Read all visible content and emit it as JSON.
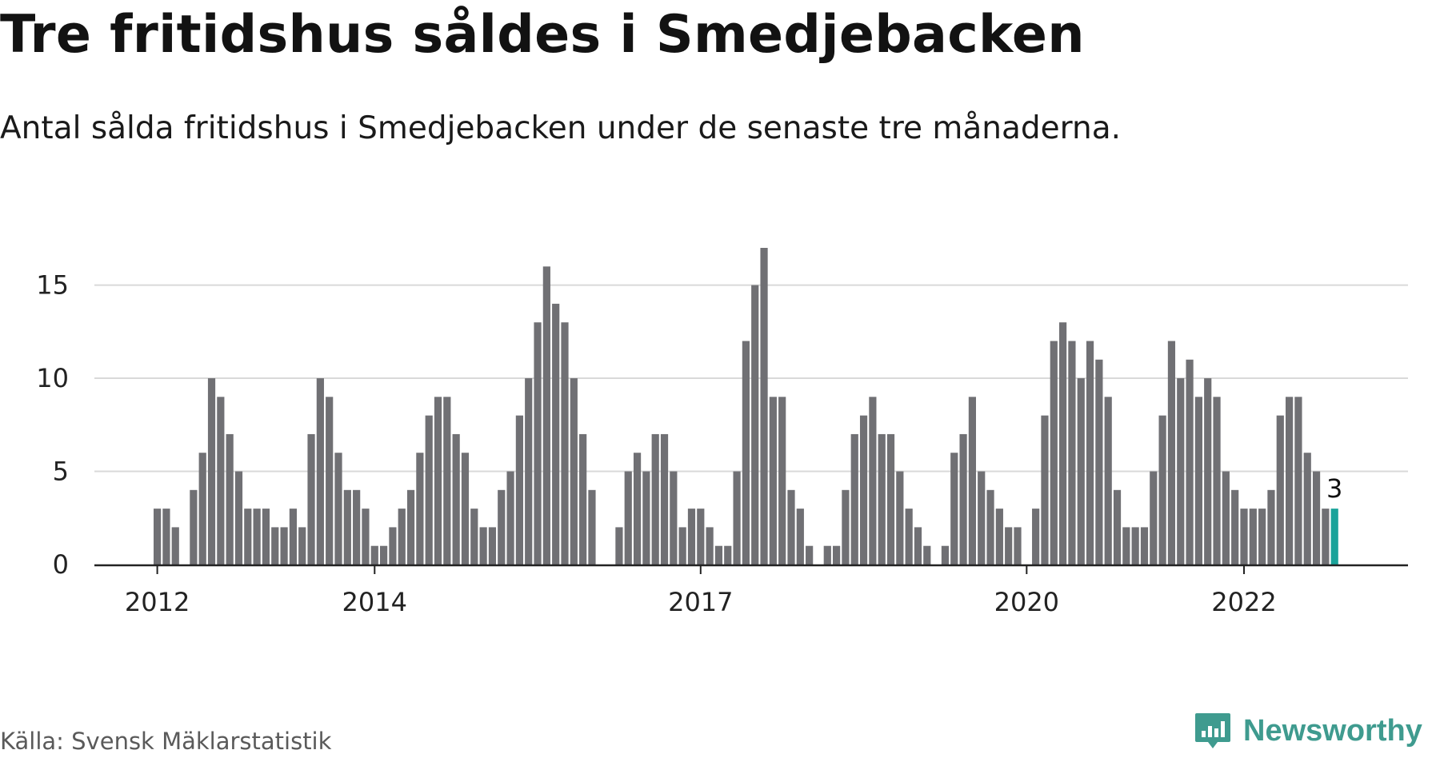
{
  "title": "Tre fritidshus såldes i Smedjebacken",
  "subtitle": "Antal sålda fritidshus i Smedjebacken under de senaste tre månaderna.",
  "source": "Källa: Svensk Mäklarstatistik",
  "brand": {
    "name": "Newsworthy",
    "color": "#3f9b8f",
    "icon": "newsworthy-logo-icon"
  },
  "colors": {
    "bar": "#707074",
    "highlight": "#1aa39a",
    "grid": "#d9d9d9",
    "axis": "#222222"
  },
  "chart_data": {
    "type": "bar",
    "title": "Tre fritidshus såldes i Smedjebacken",
    "subtitle": "Antal sålda fritidshus i Smedjebacken under de senaste tre månaderna.",
    "xlabel": "",
    "ylabel": "",
    "ylim": [
      0,
      17
    ],
    "yticks": [
      0,
      5,
      10,
      15
    ],
    "grid": true,
    "x_tick_labels": [
      {
        "label": "2012",
        "index": 0
      },
      {
        "label": "2014",
        "index": 24
      },
      {
        "label": "2017",
        "index": 60
      },
      {
        "label": "2020",
        "index": 96
      },
      {
        "label": "2022",
        "index": 120
      }
    ],
    "values": [
      3,
      3,
      2,
      0,
      4,
      6,
      10,
      9,
      7,
      5,
      3,
      3,
      3,
      2,
      2,
      3,
      2,
      7,
      10,
      9,
      6,
      4,
      4,
      3,
      1,
      1,
      2,
      3,
      4,
      6,
      8,
      9,
      9,
      7,
      6,
      3,
      2,
      2,
      4,
      5,
      8,
      10,
      13,
      16,
      14,
      13,
      10,
      7,
      4,
      0,
      0,
      2,
      5,
      6,
      5,
      7,
      7,
      5,
      2,
      3,
      3,
      2,
      1,
      1,
      5,
      12,
      15,
      17,
      9,
      9,
      4,
      3,
      1,
      0,
      1,
      1,
      4,
      7,
      8,
      9,
      7,
      7,
      5,
      3,
      2,
      1,
      0,
      1,
      6,
      7,
      9,
      5,
      4,
      3,
      2,
      2,
      0,
      3,
      8,
      12,
      13,
      12,
      10,
      12,
      11,
      9,
      4,
      2,
      2,
      2,
      5,
      8,
      12,
      10,
      11,
      9,
      10,
      9,
      5,
      4,
      3,
      3,
      3,
      4,
      8,
      9,
      9,
      6,
      5,
      3,
      3
    ],
    "highlight_last": true,
    "annotation": {
      "text": "3",
      "index": 130
    }
  }
}
